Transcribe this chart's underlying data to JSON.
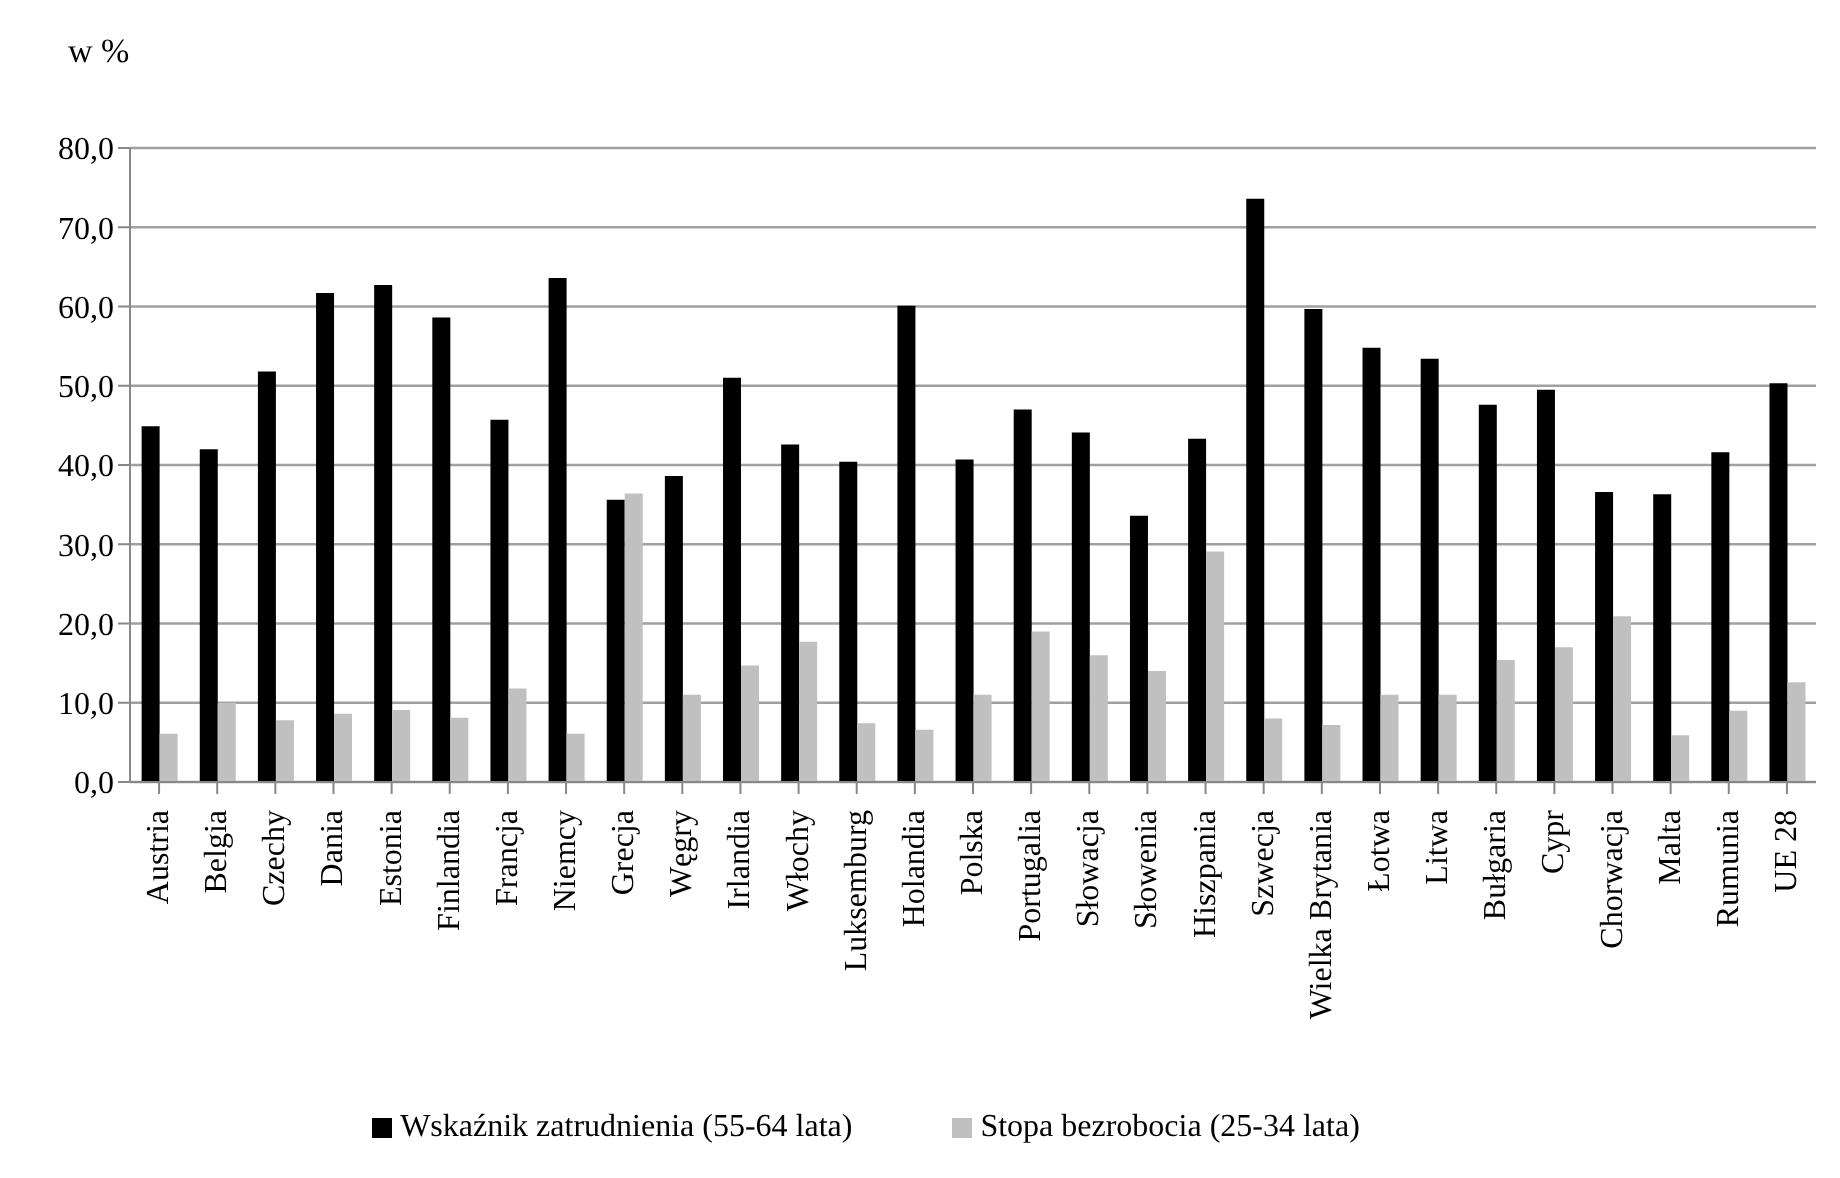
{
  "chart_data": {
    "type": "bar",
    "ylabel": "w %",
    "categories": [
      "Austria",
      "Belgia",
      "Czechy",
      "Dania",
      "Estonia",
      "Finlandia",
      "Francja",
      "Niemcy",
      "Grecja",
      "Węgry",
      "Irlandia",
      "Włochy",
      "Luksemburg",
      "Holandia",
      "Polska",
      "Portugalia",
      "Słowacja",
      "Słowenia",
      "Hiszpania",
      "Szwecja",
      "Wielka Brytania",
      "Łotwa",
      "Litwa",
      "Bułgaria",
      "Cypr",
      "Chorwacja",
      "Malta",
      "Rumunia",
      "UE 28"
    ],
    "series": [
      {
        "name": "Wskaźnik zatrudnienia (55-64 lata)",
        "color": "#000000",
        "values": [
          44.9,
          42.0,
          51.8,
          61.7,
          62.7,
          58.6,
          45.7,
          63.6,
          35.6,
          38.6,
          51.0,
          42.6,
          40.4,
          60.1,
          40.7,
          47.0,
          44.1,
          33.6,
          43.3,
          73.6,
          59.7,
          54.8,
          53.4,
          47.6,
          49.5,
          36.6,
          36.3,
          41.6,
          50.3
        ]
      },
      {
        "name": "Stopa bezrobocia (25-34 lata)",
        "color": "#c0c0c0",
        "values": [
          6.1,
          10.0,
          7.8,
          8.6,
          9.1,
          8.1,
          11.8,
          6.1,
          36.4,
          11.0,
          14.7,
          17.7,
          7.4,
          6.6,
          11.0,
          19.0,
          16.0,
          14.0,
          29.1,
          8.0,
          7.2,
          11.0,
          11.0,
          15.4,
          17.0,
          20.9,
          5.9,
          9.0,
          12.6
        ]
      }
    ],
    "ylim": [
      0,
      80
    ],
    "yticks": [
      {
        "value": 0,
        "label": "0,0"
      },
      {
        "value": 10,
        "label": "10,0"
      },
      {
        "value": 20,
        "label": "20,0"
      },
      {
        "value": 30,
        "label": "30,0"
      },
      {
        "value": 40,
        "label": "40,0"
      },
      {
        "value": 50,
        "label": "50,0"
      },
      {
        "value": 60,
        "label": "60,0"
      },
      {
        "value": 70,
        "label": "70,0"
      },
      {
        "value": 80,
        "label": "80,0"
      }
    ],
    "grid": "y",
    "legend": "bottom"
  }
}
